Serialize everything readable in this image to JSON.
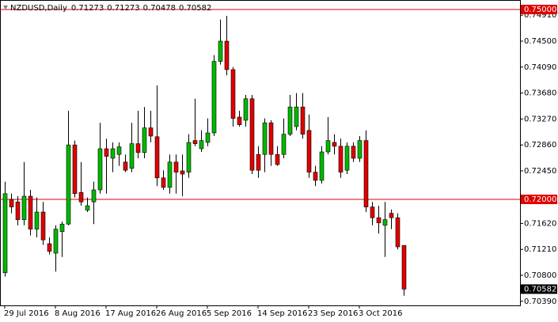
{
  "chart_data": {
    "type": "candlestick",
    "title": "NZDUSD,Daily",
    "categories": [
      "29 Jul 2016",
      null,
      null,
      null,
      null,
      null,
      null,
      null,
      "8 Aug 2016",
      null,
      null,
      null,
      null,
      null,
      null,
      null,
      "17 Aug 2016",
      null,
      null,
      null,
      null,
      null,
      null,
      null,
      "26 Aug 2016",
      null,
      null,
      null,
      null,
      null,
      null,
      null,
      "5 Sep 2016",
      null,
      null,
      null,
      null,
      null,
      null,
      null,
      "14 Sep 2016",
      null,
      null,
      null,
      null,
      null,
      null,
      null,
      "23 Sep 2016",
      null,
      null,
      null,
      null,
      null,
      null,
      null,
      "3 Oct 2016",
      null,
      null,
      null,
      null,
      null,
      null,
      null
    ],
    "open": [
      0.7084,
      0.72,
      0.7196,
      0.7168,
      0.7205,
      0.7153,
      0.718,
      0.713,
      0.7115,
      0.7149,
      0.7161,
      0.7286,
      0.7211,
      0.7183,
      0.7196,
      0.7215,
      0.728,
      0.7265,
      0.7271,
      0.7259,
      0.7249,
      0.7288,
      0.7274,
      0.7313,
      0.7299,
      0.7234,
      0.7219,
      0.7259,
      0.7245,
      0.7243,
      0.7293,
      0.728,
      0.729,
      0.7305,
      0.7418,
      0.745,
      0.7405,
      0.733,
      0.7325,
      0.7359,
      0.7271,
      0.7271,
      0.7321,
      0.7271,
      0.7271,
      0.7303,
      0.7315,
      0.7346,
      0.7309,
      0.7243,
      0.723,
      0.7275,
      0.729,
      0.7284,
      0.7246,
      0.7284,
      0.7265,
      0.7293,
      0.7188,
      0.7171,
      0.7159,
      0.7178,
      0.7171,
      0.71273
    ],
    "high": [
      0.7228,
      0.7209,
      0.7205,
      0.7259,
      0.7215,
      0.7203,
      0.7196,
      0.714,
      0.7159,
      0.7165,
      0.734,
      0.7293,
      0.7259,
      0.7203,
      0.7228,
      0.7321,
      0.7296,
      0.729,
      0.729,
      0.7271,
      0.7321,
      0.734,
      0.7346,
      0.734,
      0.738,
      0.7246,
      0.7271,
      0.7271,
      0.7271,
      0.7303,
      0.7359,
      0.7309,
      0.7328,
      0.7428,
      0.7484,
      0.749,
      0.7409,
      0.734,
      0.7365,
      0.7365,
      0.7284,
      0.7328,
      0.7325,
      0.7284,
      0.7328,
      0.7365,
      0.7368,
      0.7368,
      0.7334,
      0.7253,
      0.7284,
      0.733,
      0.7303,
      0.7296,
      0.729,
      0.729,
      0.73,
      0.7309,
      0.7196,
      0.719,
      0.7196,
      0.7184,
      0.7178,
      0.71273
    ],
    "low": [
      0.7078,
      0.7178,
      0.7159,
      0.7159,
      0.7143,
      0.714,
      0.7128,
      0.7113,
      0.7086,
      0.7109,
      0.7159,
      0.7203,
      0.719,
      0.718,
      0.7161,
      0.7209,
      0.7209,
      0.7243,
      0.7253,
      0.7243,
      0.7243,
      0.7265,
      0.7265,
      0.729,
      0.7221,
      0.7215,
      0.7209,
      0.7209,
      0.7205,
      0.7234,
      0.7284,
      0.7275,
      0.7284,
      0.73,
      0.7413,
      0.7396,
      0.7315,
      0.7315,
      0.7315,
      0.724,
      0.7234,
      0.7243,
      0.7253,
      0.7253,
      0.7265,
      0.73,
      0.7309,
      0.7296,
      0.7234,
      0.7221,
      0.7225,
      0.7271,
      0.7271,
      0.7234,
      0.724,
      0.7259,
      0.7259,
      0.718,
      0.7159,
      0.7146,
      0.7109,
      0.7153,
      0.7121,
      0.70478
    ],
    "close": [
      0.7209,
      0.7188,
      0.7168,
      0.7205,
      0.7153,
      0.718,
      0.7136,
      0.7118,
      0.7153,
      0.7161,
      0.7286,
      0.7209,
      0.7196,
      0.719,
      0.7215,
      0.728,
      0.7268,
      0.728,
      0.7283,
      0.7246,
      0.7288,
      0.7274,
      0.7313,
      0.73,
      0.7234,
      0.7219,
      0.7259,
      0.7243,
      0.724,
      0.729,
      0.7288,
      0.7293,
      0.7305,
      0.7418,
      0.745,
      0.7405,
      0.7328,
      0.7318,
      0.7359,
      0.7246,
      0.7246,
      0.7321,
      0.7271,
      0.7255,
      0.7303,
      0.7346,
      0.7346,
      0.7303,
      0.7243,
      0.723,
      0.7275,
      0.7293,
      0.7284,
      0.7243,
      0.7284,
      0.7265,
      0.7293,
      0.7188,
      0.7171,
      0.7163,
      0.7168,
      0.7171,
      0.7125,
      0.70582
    ],
    "up_color": "#00b800",
    "down_color": "#e00000",
    "wick_color": "#000000",
    "ylim": [
      0.70325,
      0.7515
    ],
    "yticks": [
      {
        "value": 0.7491,
        "label": "0.74910"
      },
      {
        "value": 0.745,
        "label": "0.74500"
      },
      {
        "value": 0.7409,
        "label": "0.74090"
      },
      {
        "value": 0.7368,
        "label": "0.73680"
      },
      {
        "value": 0.7327,
        "label": "0.73270"
      },
      {
        "value": 0.7286,
        "label": "0.72860"
      },
      {
        "value": 0.7245,
        "label": "0.72450"
      },
      {
        "value": 0.7162,
        "label": "0.71620"
      },
      {
        "value": 0.7121,
        "label": "0.71210"
      },
      {
        "value": 0.708,
        "label": "0.70800"
      },
      {
        "value": 0.7039,
        "label": "0.70390"
      }
    ],
    "hlines": [
      {
        "value": 0.75,
        "label": "0.75000"
      },
      {
        "value": 0.72,
        "label": "0.72000"
      }
    ],
    "hline_color": "#e00000",
    "grid": false
  }
}
